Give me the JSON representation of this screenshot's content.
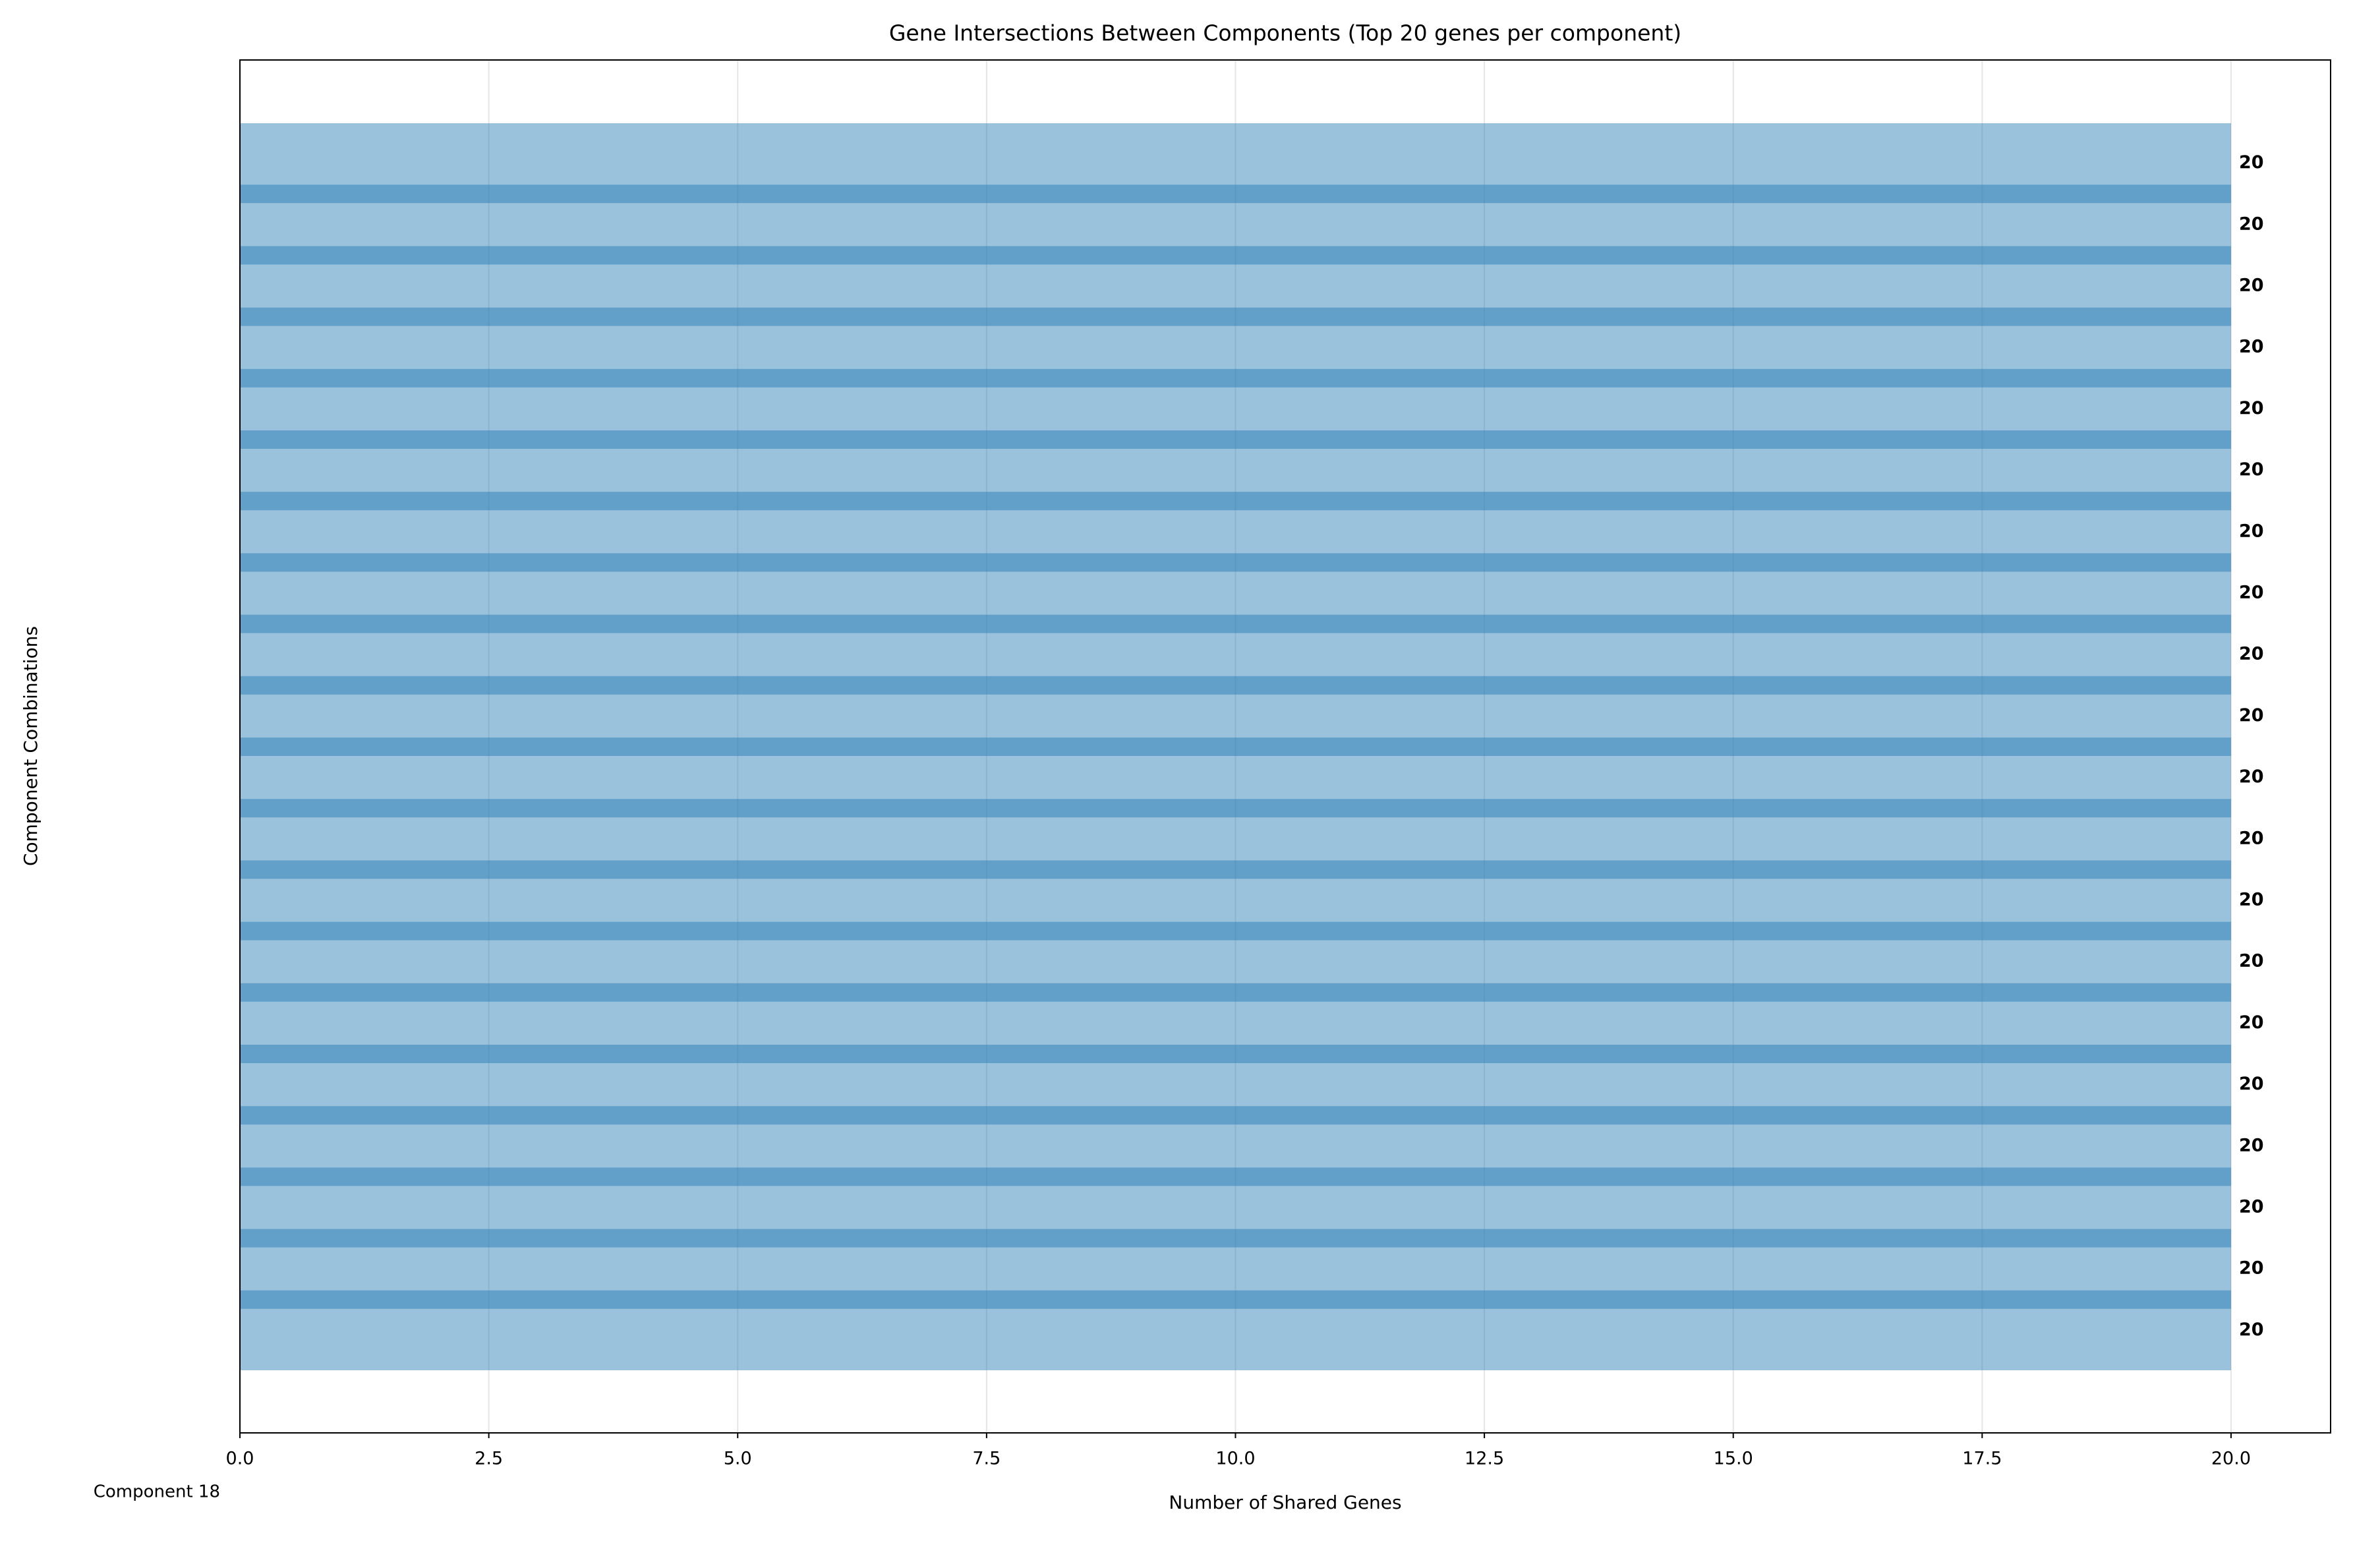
{
  "chart_data": {
    "type": "barh",
    "title": "Gene Intersections Between Components (Top 20 genes per component)",
    "x_label": "Number of Shared Genes",
    "y_label": "Component Combinations",
    "categories": [
      null,
      null,
      null,
      null,
      null,
      null,
      null,
      null,
      null,
      null,
      null,
      null,
      null,
      null,
      null,
      null,
      null,
      null,
      null,
      "Component 18"
    ],
    "values": [
      20,
      20,
      20,
      20,
      20,
      20,
      20,
      20,
      20,
      20,
      20,
      20,
      20,
      20,
      20,
      20,
      20,
      20,
      20,
      20
    ],
    "color": "#1f77b4",
    "xlim": [
      0,
      21
    ],
    "xticks": [
      {
        "value": 0,
        "label": "0.0"
      },
      2.5,
      {
        "value": 5,
        "label": "5.0"
      },
      7.5,
      {
        "value": 10,
        "label": "10.0"
      },
      12.5,
      {
        "value": 15,
        "label": "15.0"
      },
      17.5,
      {
        "value": 20,
        "label": "20.0"
      }
    ],
    "grid": true
  }
}
